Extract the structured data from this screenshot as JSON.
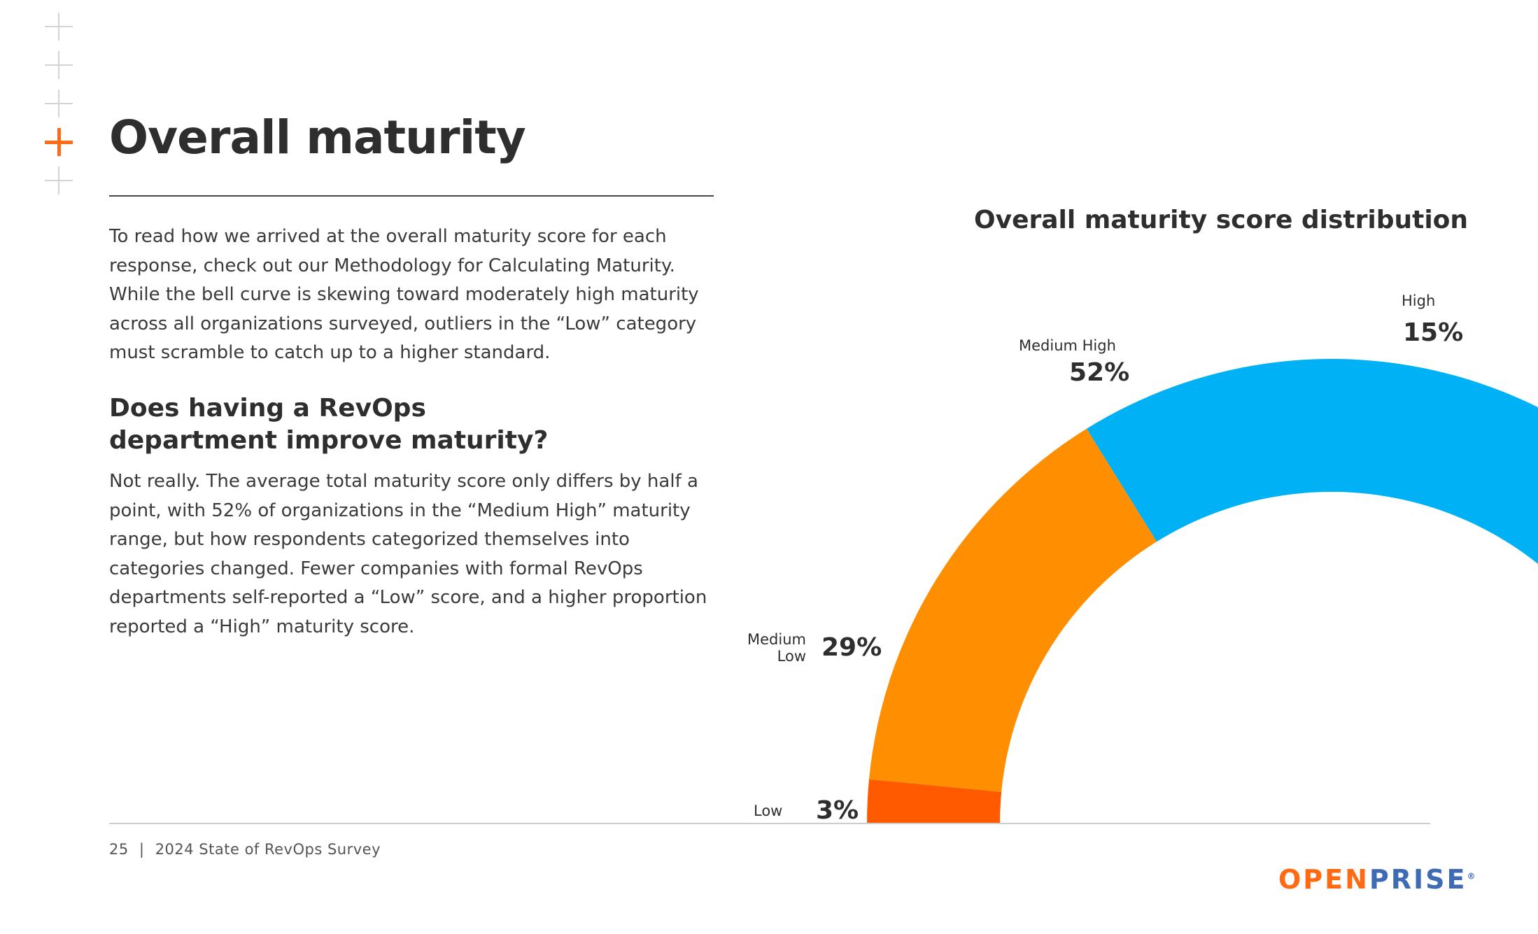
{
  "title": "Overall maturity",
  "intro": "To read how we arrived at the overall maturity score for each response, check out our Methodology for Calculating Maturity. While the bell curve is skewing toward moderately high maturity across all organizations surveyed, outliers in the “Low” category must scramble to catch up to a higher standard.",
  "question": "Does having a RevOps department improve maturity?",
  "answer": "Not really. The average total maturity score only differs by half a point, with 52% of organizations in the “Medium High” maturity range, but how respondents categorized themselves into categories changed. Fewer companies with formal RevOps departments self-reported a “Low” score, and a higher proportion reported a “High” maturity score.",
  "footer": {
    "page_number": "25",
    "separator": "|",
    "doc_title": "2024 State of RevOps Survey"
  },
  "logo": {
    "part1": "OPEN",
    "part2": "PRISE",
    "mark": "®",
    "color1": "#ff6a13",
    "color2": "#3f6bb5"
  },
  "colors": {
    "accent": "#ff6a13",
    "low": "#ff5a00",
    "medium_low": "#ff8f00",
    "medium_high": "#00b2f5",
    "high": "#3f6bb5"
  },
  "chart_data": {
    "type": "pie",
    "variant": "half-donut",
    "title": "Overall maturity score distribution",
    "categories": [
      "Low",
      "Medium Low",
      "Medium High",
      "High"
    ],
    "values": [
      3,
      29,
      52,
      15
    ],
    "value_labels": [
      "3%",
      "29%",
      "52%",
      "15%"
    ],
    "colors": [
      "#ff5a00",
      "#ff8f00",
      "#00b2f5",
      "#3f6bb5"
    ]
  }
}
